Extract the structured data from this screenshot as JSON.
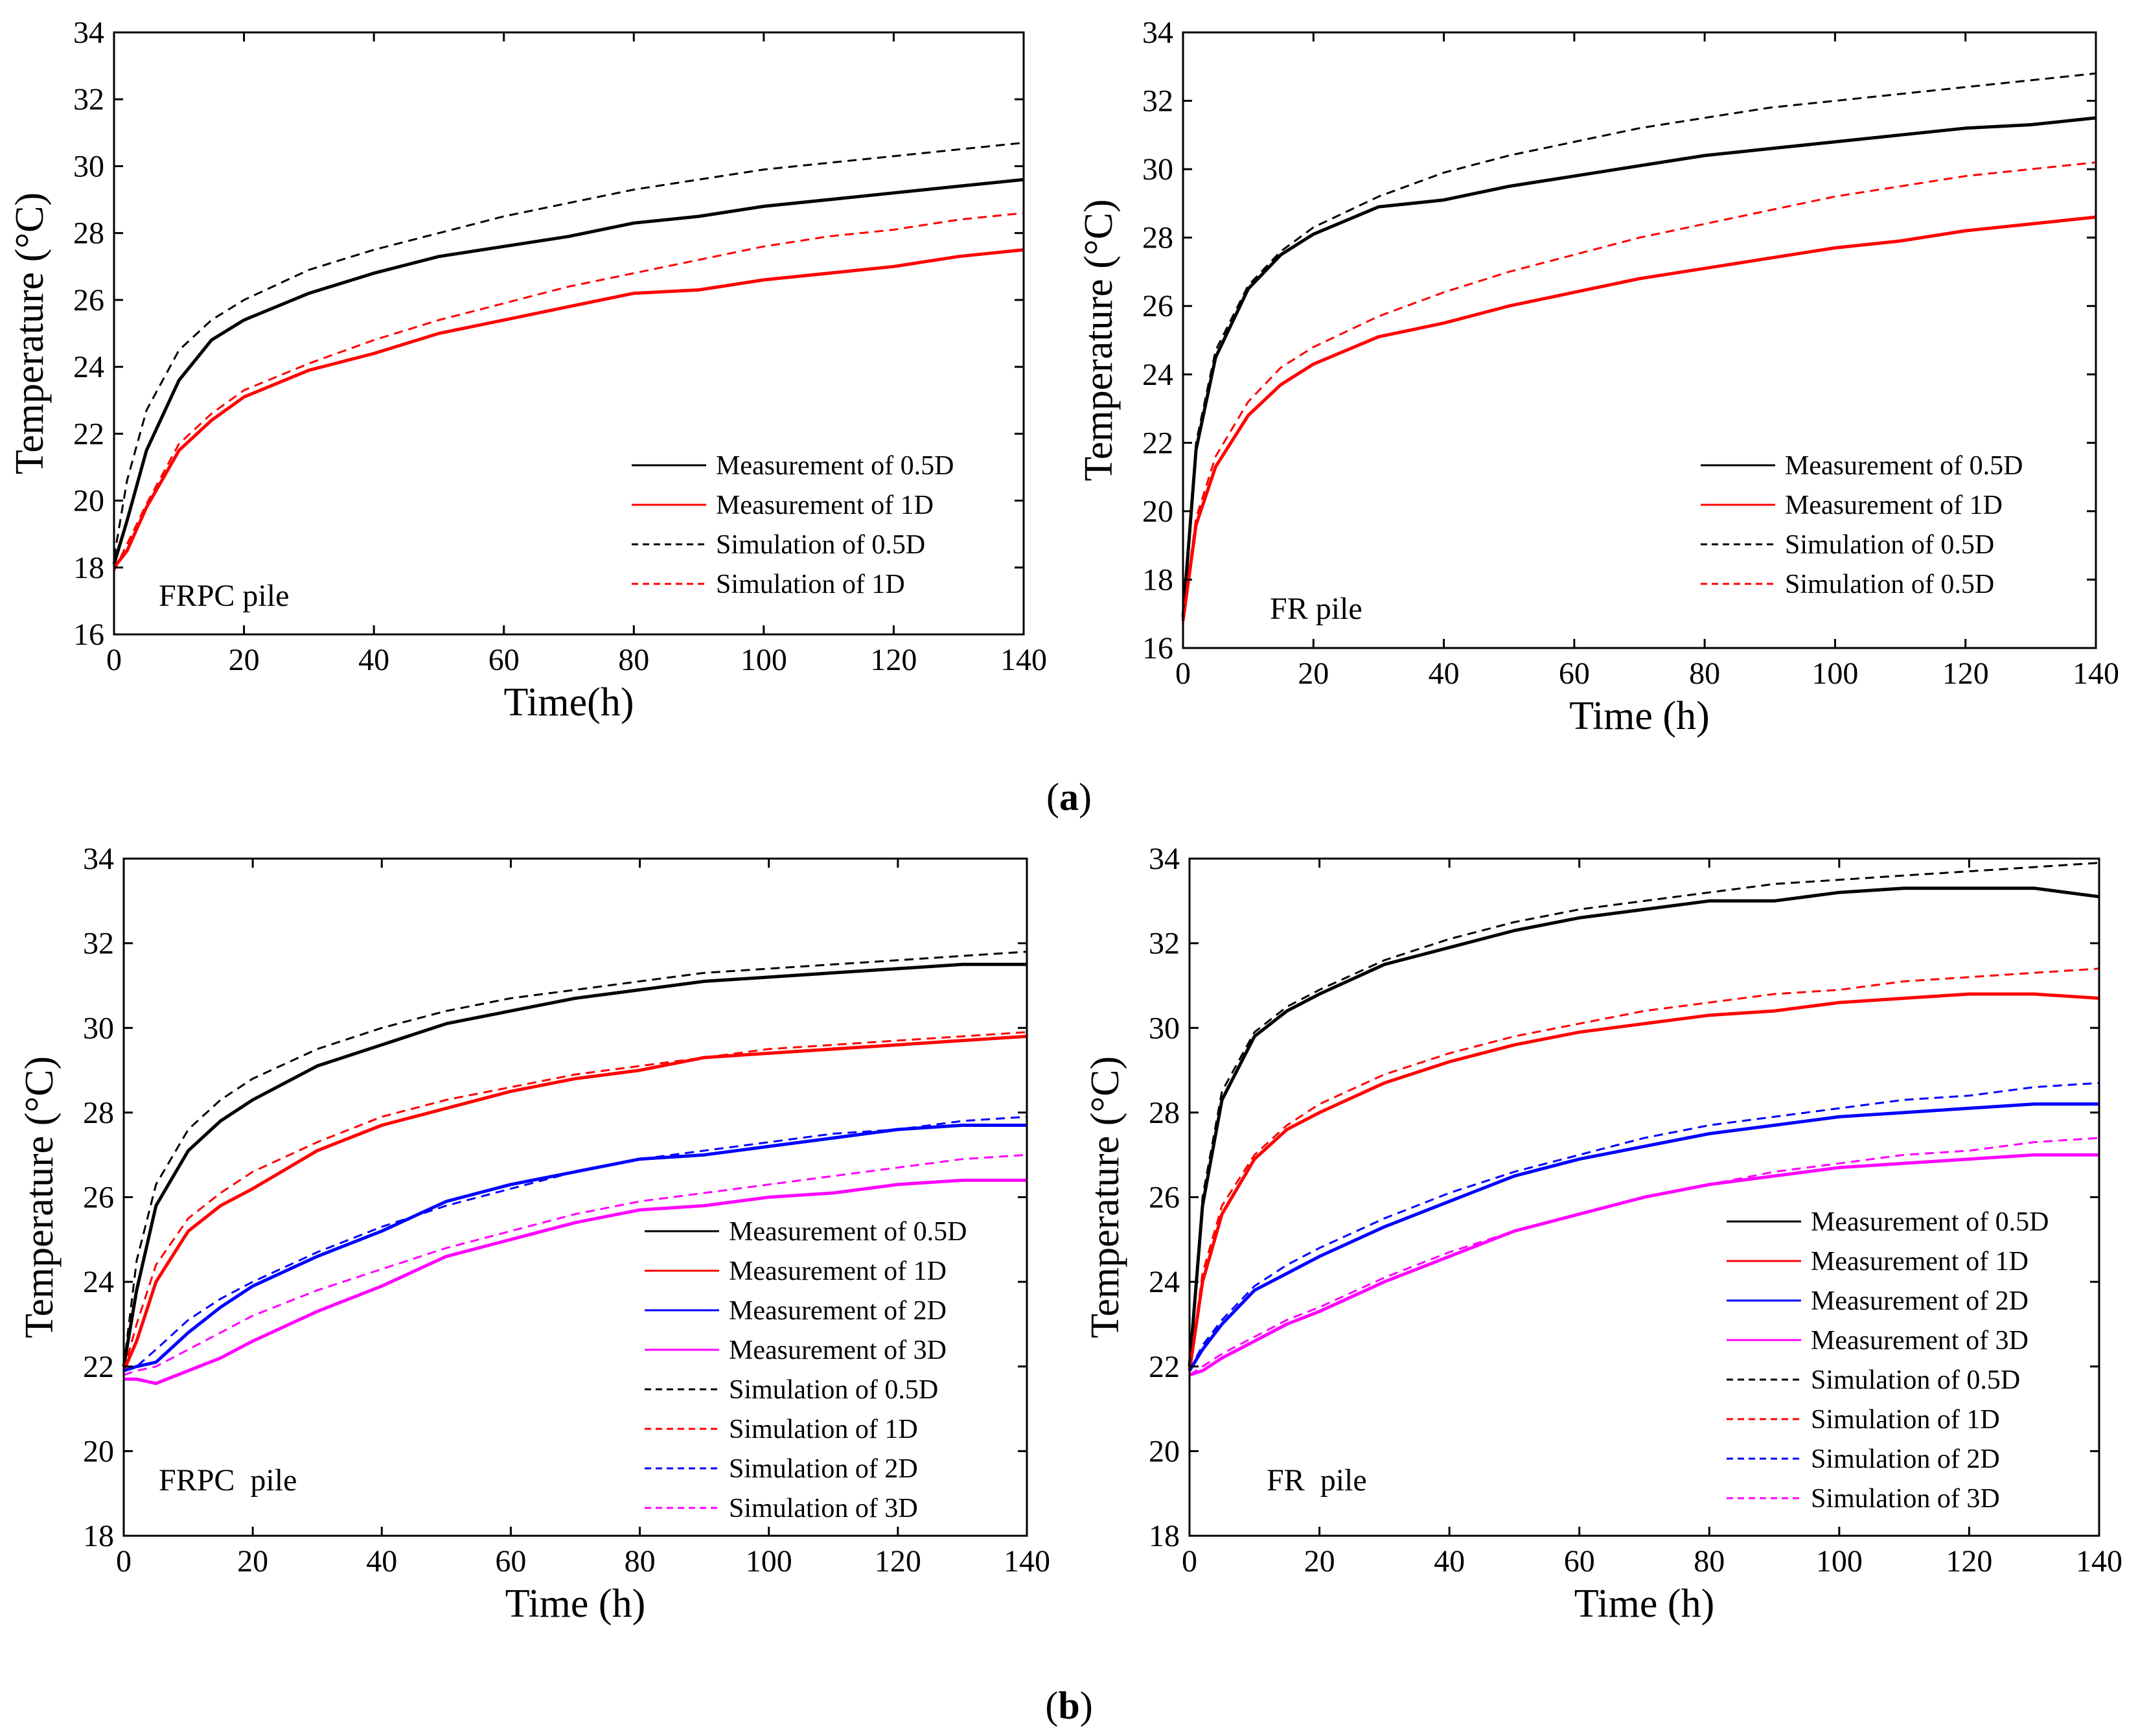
{
  "captions": {
    "a": {
      "open": "(",
      "letter": "a",
      "close": ")"
    },
    "b": {
      "open": "(",
      "letter": "b",
      "close": ")"
    }
  },
  "chart_data": [
    {
      "type": "line",
      "panel_label": "FRPC pile",
      "xlabel": "Time(h)",
      "ylabel": "Temperature (°C)",
      "xlim": [
        0,
        140
      ],
      "ylim": [
        16,
        34
      ],
      "xticks": [
        0,
        20,
        40,
        60,
        80,
        100,
        120,
        140
      ],
      "yticks": [
        16,
        18,
        20,
        22,
        24,
        26,
        28,
        30,
        32,
        34
      ],
      "legend": "lower-right",
      "x": [
        0,
        2,
        5,
        10,
        15,
        20,
        30,
        40,
        50,
        60,
        70,
        80,
        90,
        100,
        110,
        120,
        130,
        140
      ],
      "series": [
        {
          "name": "Measurement of 0.5D",
          "color": "#000000",
          "dash": "solid",
          "values": [
            18.1,
            19.4,
            21.5,
            23.6,
            24.8,
            25.4,
            26.2,
            26.8,
            27.3,
            27.6,
            27.9,
            28.3,
            28.5,
            28.8,
            29.0,
            29.2,
            29.4,
            29.6
          ]
        },
        {
          "name": "Measurement of 1D",
          "color": "#ff0000",
          "dash": "solid",
          "values": [
            18.0,
            18.5,
            19.8,
            21.5,
            22.4,
            23.1,
            23.9,
            24.4,
            25.0,
            25.4,
            25.8,
            26.2,
            26.3,
            26.6,
            26.8,
            27.0,
            27.3,
            27.5
          ]
        },
        {
          "name": "Simulation of 0.5D",
          "color": "#000000",
          "dash": "dash",
          "values": [
            18.3,
            20.6,
            22.7,
            24.5,
            25.4,
            26.0,
            26.9,
            27.5,
            28.0,
            28.5,
            28.9,
            29.3,
            29.6,
            29.9,
            30.1,
            30.3,
            30.5,
            30.7
          ]
        },
        {
          "name": "Simulation of 1D",
          "color": "#ff0000",
          "dash": "dash",
          "values": [
            17.9,
            18.7,
            19.9,
            21.7,
            22.6,
            23.3,
            24.1,
            24.8,
            25.4,
            25.9,
            26.4,
            26.8,
            27.2,
            27.6,
            27.9,
            28.1,
            28.4,
            28.6
          ]
        }
      ]
    },
    {
      "type": "line",
      "panel_label": "FR pile",
      "xlabel": "Time (h)",
      "ylabel": "Temperature (°C)",
      "xlim": [
        0,
        140
      ],
      "ylim": [
        16,
        34
      ],
      "xticks": [
        0,
        20,
        40,
        60,
        80,
        100,
        120,
        140
      ],
      "yticks": [
        16,
        18,
        20,
        22,
        24,
        26,
        28,
        30,
        32,
        34
      ],
      "legend": "lower-right",
      "x": [
        0,
        2,
        5,
        10,
        15,
        20,
        30,
        40,
        50,
        60,
        70,
        80,
        90,
        100,
        110,
        120,
        130,
        140
      ],
      "series": [
        {
          "name": "Measurement of 0.5D",
          "color": "#000000",
          "dash": "solid",
          "values": [
            16.9,
            21.8,
            24.5,
            26.5,
            27.5,
            28.1,
            28.9,
            29.1,
            29.5,
            29.8,
            30.1,
            30.4,
            30.6,
            30.8,
            31.0,
            31.2,
            31.3,
            31.5
          ]
        },
        {
          "name": "Measurement of 1D",
          "color": "#ff0000",
          "dash": "solid",
          "values": [
            16.8,
            19.6,
            21.3,
            22.8,
            23.7,
            24.3,
            25.1,
            25.5,
            26.0,
            26.4,
            26.8,
            27.1,
            27.4,
            27.7,
            27.9,
            28.2,
            28.4,
            28.6
          ]
        },
        {
          "name": "Simulation of 0.5D",
          "color": "#000000",
          "dash": "dash",
          "values": [
            17.0,
            22.0,
            24.7,
            26.6,
            27.6,
            28.3,
            29.2,
            29.9,
            30.4,
            30.8,
            31.2,
            31.5,
            31.8,
            32.0,
            32.2,
            32.4,
            32.6,
            32.8
          ]
        },
        {
          "name": "Simulation of 0.5D",
          "color": "#ff0000",
          "dash": "dash",
          "values": [
            16.9,
            19.8,
            21.6,
            23.2,
            24.2,
            24.8,
            25.7,
            26.4,
            27.0,
            27.5,
            28.0,
            28.4,
            28.8,
            29.2,
            29.5,
            29.8,
            30.0,
            30.2
          ]
        }
      ]
    },
    {
      "type": "line",
      "panel_label": "FRPC  pile",
      "xlabel": "Time (h)",
      "ylabel": "Temperature (°C)",
      "xlim": [
        0,
        140
      ],
      "ylim": [
        18,
        34
      ],
      "xticks": [
        0,
        20,
        40,
        60,
        80,
        100,
        120,
        140
      ],
      "yticks": [
        18,
        20,
        22,
        24,
        26,
        28,
        30,
        32,
        34
      ],
      "legend": "lower-right",
      "x": [
        0,
        2,
        5,
        10,
        15,
        20,
        30,
        40,
        50,
        60,
        70,
        80,
        90,
        100,
        110,
        120,
        130,
        140
      ],
      "series": [
        {
          "name": "Measurement of 0.5D",
          "color": "#000000",
          "dash": "solid",
          "values": [
            22.0,
            23.8,
            25.8,
            27.1,
            27.8,
            28.3,
            29.1,
            29.6,
            30.1,
            30.4,
            30.7,
            30.9,
            31.1,
            31.2,
            31.3,
            31.4,
            31.5,
            31.5
          ]
        },
        {
          "name": "Measurement of 1D",
          "color": "#ff0000",
          "dash": "solid",
          "values": [
            21.9,
            22.6,
            24.0,
            25.2,
            25.8,
            26.2,
            27.1,
            27.7,
            28.1,
            28.5,
            28.8,
            29.0,
            29.3,
            29.4,
            29.5,
            29.6,
            29.7,
            29.8
          ]
        },
        {
          "name": "Measurement of 2D",
          "color": "#0000ff",
          "dash": "solid",
          "values": [
            21.9,
            22.0,
            22.1,
            22.8,
            23.4,
            23.9,
            24.6,
            25.2,
            25.9,
            26.3,
            26.6,
            26.9,
            27.0,
            27.2,
            27.4,
            27.6,
            27.7,
            27.7
          ]
        },
        {
          "name": "Measurement of 3D",
          "color": "#ff00ff",
          "dash": "solid",
          "values": [
            21.7,
            21.7,
            21.6,
            21.9,
            22.2,
            22.6,
            23.3,
            23.9,
            24.6,
            25.0,
            25.4,
            25.7,
            25.8,
            26.0,
            26.1,
            26.3,
            26.4,
            26.4
          ]
        },
        {
          "name": "Simulation of 0.5D",
          "color": "#000000",
          "dash": "dash",
          "values": [
            22.0,
            24.5,
            26.3,
            27.6,
            28.3,
            28.8,
            29.5,
            30.0,
            30.4,
            30.7,
            30.9,
            31.1,
            31.3,
            31.4,
            31.5,
            31.6,
            31.7,
            31.8
          ]
        },
        {
          "name": "Simulation of 1D",
          "color": "#ff0000",
          "dash": "dash",
          "values": [
            21.9,
            23.0,
            24.4,
            25.5,
            26.1,
            26.6,
            27.3,
            27.9,
            28.3,
            28.6,
            28.9,
            29.1,
            29.3,
            29.5,
            29.6,
            29.7,
            29.8,
            29.9
          ]
        },
        {
          "name": "Simulation of 2D",
          "color": "#0000ff",
          "dash": "dash",
          "values": [
            21.9,
            22.0,
            22.4,
            23.1,
            23.6,
            24.0,
            24.7,
            25.3,
            25.8,
            26.2,
            26.6,
            26.9,
            27.1,
            27.3,
            27.5,
            27.6,
            27.8,
            27.9
          ]
        },
        {
          "name": "Simulation of 3D",
          "color": "#ff00ff",
          "dash": "dash",
          "values": [
            21.8,
            21.9,
            22.0,
            22.4,
            22.8,
            23.2,
            23.8,
            24.3,
            24.8,
            25.2,
            25.6,
            25.9,
            26.1,
            26.3,
            26.5,
            26.7,
            26.9,
            27.0
          ]
        }
      ]
    },
    {
      "type": "line",
      "panel_label": "FR  pile",
      "xlabel": "Time (h)",
      "ylabel": "Temperature (°C)",
      "xlim": [
        0,
        140
      ],
      "ylim": [
        18,
        34
      ],
      "xticks": [
        0,
        20,
        40,
        60,
        80,
        100,
        120,
        140
      ],
      "yticks": [
        18,
        20,
        22,
        24,
        26,
        28,
        30,
        32,
        34
      ],
      "legend": "lower-right",
      "x": [
        0,
        2,
        5,
        10,
        15,
        20,
        30,
        40,
        50,
        60,
        70,
        80,
        90,
        100,
        110,
        120,
        130,
        140
      ],
      "series": [
        {
          "name": "Measurement of 0.5D",
          "color": "#000000",
          "dash": "solid",
          "values": [
            22.0,
            25.8,
            28.3,
            29.8,
            30.4,
            30.8,
            31.5,
            31.9,
            32.3,
            32.6,
            32.8,
            33.0,
            33.0,
            33.2,
            33.3,
            33.3,
            33.3,
            33.1
          ]
        },
        {
          "name": "Measurement of 1D",
          "color": "#ff0000",
          "dash": "solid",
          "values": [
            21.9,
            24.0,
            25.6,
            26.9,
            27.6,
            28.0,
            28.7,
            29.2,
            29.6,
            29.9,
            30.1,
            30.3,
            30.4,
            30.6,
            30.7,
            30.8,
            30.8,
            30.7
          ]
        },
        {
          "name": "Measurement of 2D",
          "color": "#0000ff",
          "dash": "solid",
          "values": [
            21.9,
            22.4,
            23.0,
            23.8,
            24.2,
            24.6,
            25.3,
            25.9,
            26.5,
            26.9,
            27.2,
            27.5,
            27.7,
            27.9,
            28.0,
            28.1,
            28.2,
            28.2
          ]
        },
        {
          "name": "Measurement of 3D",
          "color": "#ff00ff",
          "dash": "solid",
          "values": [
            21.8,
            21.9,
            22.2,
            22.6,
            23.0,
            23.3,
            24.0,
            24.6,
            25.2,
            25.6,
            26.0,
            26.3,
            26.5,
            26.7,
            26.8,
            26.9,
            27.0,
            27.0
          ]
        },
        {
          "name": "Simulation of 0.5D",
          "color": "#000000",
          "dash": "dash",
          "values": [
            22.0,
            26.0,
            28.5,
            29.9,
            30.5,
            30.9,
            31.6,
            32.1,
            32.5,
            32.8,
            33.0,
            33.2,
            33.4,
            33.5,
            33.6,
            33.7,
            33.8,
            33.9
          ]
        },
        {
          "name": "Simulation of 1D",
          "color": "#ff0000",
          "dash": "dash",
          "values": [
            21.9,
            24.2,
            25.8,
            27.0,
            27.7,
            28.2,
            28.9,
            29.4,
            29.8,
            30.1,
            30.4,
            30.6,
            30.8,
            30.9,
            31.1,
            31.2,
            31.3,
            31.4
          ]
        },
        {
          "name": "Simulation of 2D",
          "color": "#0000ff",
          "dash": "dash",
          "values": [
            21.9,
            22.5,
            23.1,
            23.9,
            24.4,
            24.8,
            25.5,
            26.1,
            26.6,
            27.0,
            27.4,
            27.7,
            27.9,
            28.1,
            28.3,
            28.4,
            28.6,
            28.7
          ]
        },
        {
          "name": "Simulation of 3D",
          "color": "#ff00ff",
          "dash": "dash",
          "values": [
            21.8,
            22.0,
            22.3,
            22.7,
            23.1,
            23.4,
            24.1,
            24.7,
            25.2,
            25.6,
            26.0,
            26.3,
            26.6,
            26.8,
            27.0,
            27.1,
            27.3,
            27.4
          ]
        }
      ]
    }
  ]
}
